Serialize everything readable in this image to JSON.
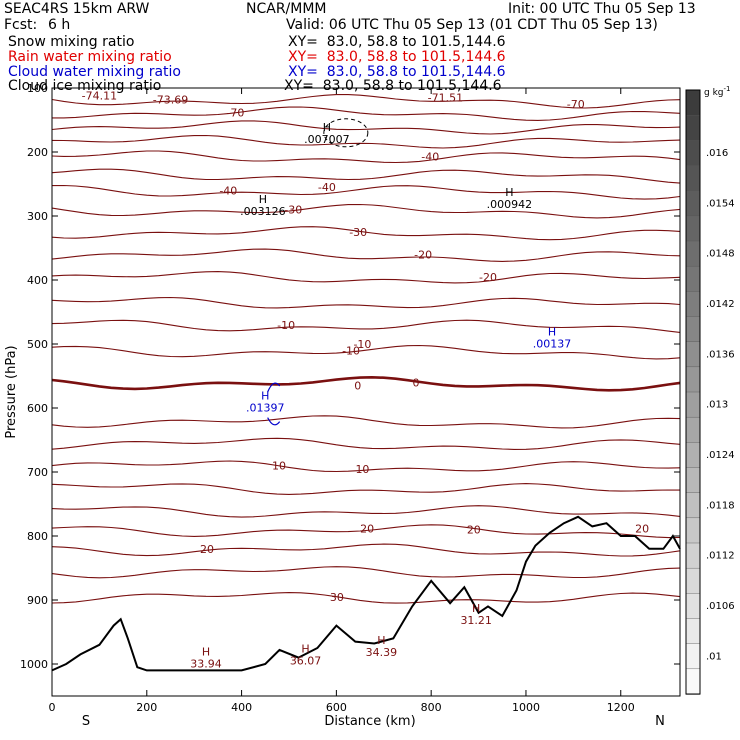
{
  "header": {
    "model": "SEAC4RS 15km ARW",
    "institution": "NCAR/MMM",
    "init": "Init: 00 UTC Thu 05 Sep 13",
    "fcst_label": "Fcst:",
    "fcst_value": "6 h",
    "valid": "Valid: 06 UTC Thu 05 Sep 13 (01 CDT Thu 05 Sep 13)",
    "fields": [
      {
        "name": "Snow mixing ratio",
        "xy": "XY=  83.0, 58.8 to 101.5,144.6",
        "color": "#000000"
      },
      {
        "name": "Rain water mixing ratio",
        "xy": "XY=  83.0, 58.8 to 101.5,144.6",
        "color": "#e00000"
      },
      {
        "name": "Cloud water mixing ratio",
        "xy": "XY=  83.0, 58.8 to 101.5,144.6",
        "color": "#0000cc"
      },
      {
        "name": "Cloud ice mixing ratio",
        "xy": "XY=  83.0, 58.8 to 101.5,144.6",
        "color": "#000000"
      }
    ]
  },
  "chart_data": {
    "type": "line",
    "title": "",
    "xlabel": "Distance (km)",
    "ylabel": "Pressure (hPa)",
    "xlim": [
      0,
      1325
    ],
    "ylim": [
      1050,
      100
    ],
    "x_ticks": [
      0,
      200,
      400,
      600,
      800,
      1000,
      1200
    ],
    "y_ticks": [
      100,
      200,
      300,
      400,
      500,
      600,
      700,
      800,
      900,
      1000
    ],
    "x_end_labels": {
      "left": "S",
      "right": "N"
    },
    "isotherms": {
      "color": "#7a1010",
      "levels_hpa_at_left": [
        {
          "p": 118,
          "label": "-73.69"
        },
        {
          "p": 138,
          "label": "-70"
        },
        {
          "p": 160
        },
        {
          "p": 183
        },
        {
          "p": 207,
          "label": "-40"
        },
        {
          "p": 235
        },
        {
          "p": 260,
          "label": "-40"
        },
        {
          "p": 290,
          "label": "-30"
        },
        {
          "p": 325,
          "label": "-30"
        },
        {
          "p": 360,
          "label": "-20"
        },
        {
          "p": 395,
          "label": "-20"
        },
        {
          "p": 435
        },
        {
          "p": 470,
          "label": "-10"
        },
        {
          "p": 510,
          "label": "-10"
        },
        {
          "p": 560,
          "label": "0",
          "bold": true
        },
        {
          "p": 620
        },
        {
          "p": 655
        },
        {
          "p": 690,
          "label": "10"
        },
        {
          "p": 725
        },
        {
          "p": 760
        },
        {
          "p": 790,
          "label": "20"
        },
        {
          "p": 820,
          "label": "20"
        },
        {
          "p": 855
        },
        {
          "p": 895,
          "label": "30"
        }
      ],
      "extra_labels": [
        {
          "text": "-74.11",
          "x": 100,
          "p": 112
        },
        {
          "text": "-71.51",
          "x": 830,
          "p": 115
        },
        {
          "text": "-70",
          "x": 1105,
          "p": 125
        },
        {
          "text": "-40",
          "x": 580,
          "p": 255
        },
        {
          "text": "-10",
          "x": 655,
          "p": 500
        },
        {
          "text": "0",
          "x": 645,
          "p": 565
        },
        {
          "text": "10",
          "x": 655,
          "p": 695
        },
        {
          "text": "20",
          "x": 665,
          "p": 788
        },
        {
          "text": "20",
          "x": 1245,
          "p": 788
        }
      ]
    },
    "extrema": [
      {
        "type": "H",
        "value": ".007007",
        "x": 580,
        "p": 170,
        "color": "#000000"
      },
      {
        "type": "H",
        "value": ".003126",
        "x": 445,
        "p": 283,
        "color": "#000000"
      },
      {
        "type": "H",
        "value": ".000942",
        "x": 965,
        "p": 272,
        "color": "#000000"
      },
      {
        "type": "H",
        "value": ".00137",
        "x": 1055,
        "p": 490,
        "color": "#0000cc"
      },
      {
        "type": "H",
        "value": ".01397",
        "x": 450,
        "p": 590,
        "color": "#0000cc"
      },
      {
        "type": "H",
        "value": "33.94",
        "x": 325,
        "p": 990,
        "color": "#7a1010"
      },
      {
        "type": "H",
        "value": "36.07",
        "x": 535,
        "p": 985,
        "color": "#7a1010"
      },
      {
        "type": "H",
        "value": "34.39",
        "x": 695,
        "p": 972,
        "color": "#7a1010"
      },
      {
        "type": "H",
        "value": "31.21",
        "x": 895,
        "p": 922,
        "color": "#7a1010"
      }
    ],
    "terrain": {
      "x": [
        0,
        30,
        60,
        100,
        130,
        145,
        160,
        180,
        200,
        400,
        450,
        480,
        520,
        560,
        600,
        640,
        680,
        720,
        760,
        800,
        840,
        870,
        900,
        920,
        950,
        980,
        1000,
        1020,
        1050,
        1080,
        1110,
        1140,
        1170,
        1200,
        1230,
        1260,
        1290,
        1310,
        1325
      ],
      "p": [
        1010,
        1000,
        985,
        970,
        940,
        930,
        960,
        1005,
        1010,
        1010,
        1000,
        978,
        990,
        975,
        940,
        965,
        968,
        960,
        910,
        870,
        905,
        880,
        920,
        910,
        925,
        885,
        840,
        815,
        795,
        780,
        770,
        785,
        780,
        800,
        800,
        820,
        820,
        800,
        820
      ]
    },
    "colorbar": {
      "unit": "g kg",
      "unit_sup": "-1",
      "labels": [
        ".016",
        ".0154",
        ".0148",
        ".0142",
        ".0136",
        ".013",
        ".0124",
        ".0118",
        ".0112",
        ".0106",
        ".01"
      ]
    }
  }
}
